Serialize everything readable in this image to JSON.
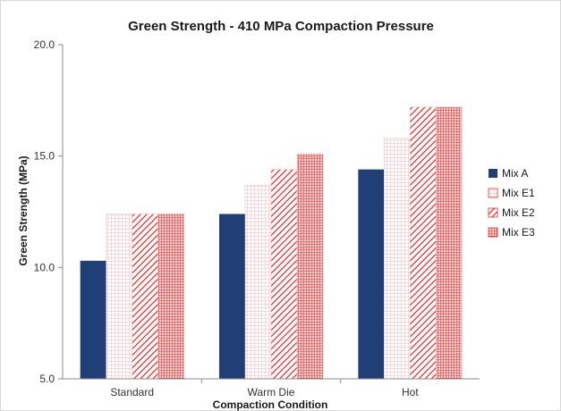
{
  "chart_data": {
    "type": "bar",
    "title": "Green Strength - 410 MPa Compaction Pressure",
    "xlabel": "Compaction Condition",
    "ylabel": "Green Strength (MPa)",
    "ylim": [
      5.0,
      20.0
    ],
    "yticks": [
      "5.0",
      "10.0",
      "15.0",
      "20.0"
    ],
    "categories": [
      "Standard",
      "Warm Die",
      "Hot"
    ],
    "series": [
      {
        "name": "Mix A",
        "values": [
          10.3,
          12.4,
          14.4
        ],
        "color": "#1f3f76",
        "pattern": "solid"
      },
      {
        "name": "Mix E1",
        "values": [
          12.4,
          13.7,
          15.8
        ],
        "color": "#f07070",
        "pattern": "light-grid"
      },
      {
        "name": "Mix E2",
        "values": [
          12.4,
          14.4,
          17.2
        ],
        "color": "#e8312f",
        "pattern": "diagonal"
      },
      {
        "name": "Mix E3",
        "values": [
          12.4,
          15.1,
          17.2
        ],
        "color": "#e8312f",
        "pattern": "dense-grid"
      }
    ],
    "grid": false,
    "legend_position": "right"
  }
}
